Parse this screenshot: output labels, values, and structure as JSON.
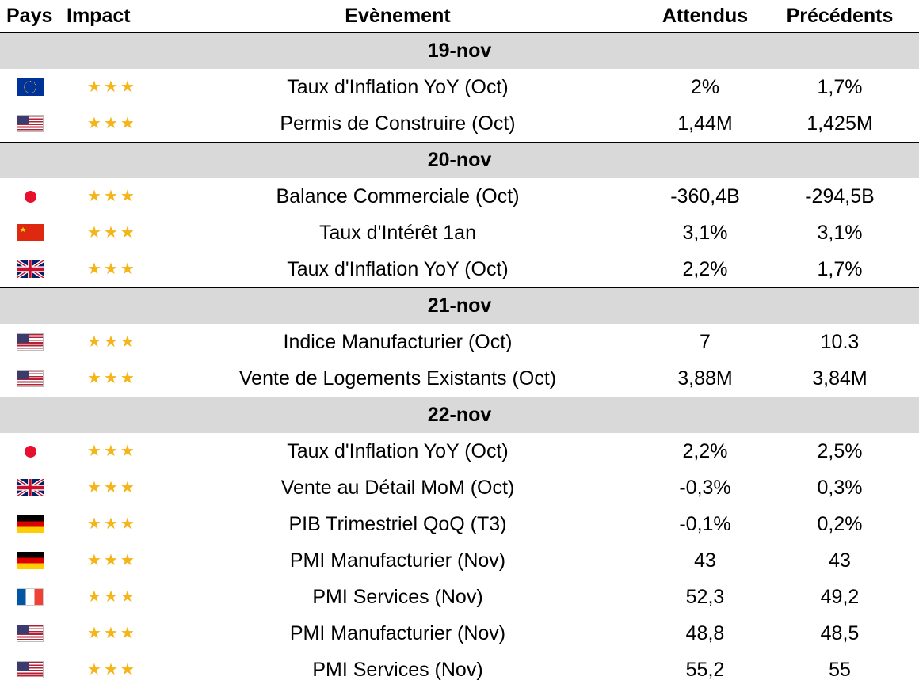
{
  "header": {
    "pays": "Pays",
    "impact": "Impact",
    "event": "Evènement",
    "attendus": "Attendus",
    "precedents": "Précédents"
  },
  "star_glyph": "★",
  "colors": {
    "date_band": "#d9d9d9",
    "star": "#f5b417"
  },
  "groups": [
    {
      "date": "19-nov",
      "rows": [
        {
          "country_icon": "eu-flag-icon",
          "event": "Taux d'Inflation YoY (Oct)",
          "attendus": "2%",
          "precedents": "1,7%"
        },
        {
          "country_icon": "us-flag-icon",
          "event": "Permis de Construire (Oct)",
          "attendus": "1,44M",
          "precedents": "1,425M"
        }
      ]
    },
    {
      "date": "20-nov",
      "rows": [
        {
          "country_icon": "jp-flag-icon",
          "event": "Balance Commerciale (Oct)",
          "attendus": "-360,4B",
          "precedents": "-294,5B"
        },
        {
          "country_icon": "cn-flag-icon",
          "event": "Taux d'Intérêt 1an",
          "attendus": "3,1%",
          "precedents": "3,1%"
        },
        {
          "country_icon": "uk-flag-icon",
          "event": "Taux d'Inflation YoY (Oct)",
          "attendus": "2,2%",
          "precedents": "1,7%"
        }
      ]
    },
    {
      "date": "21-nov",
      "rows": [
        {
          "country_icon": "us-flag-icon",
          "event": "Indice Manufacturier (Oct)",
          "attendus": "7",
          "precedents": "10.3"
        },
        {
          "country_icon": "us-flag-icon",
          "event": "Vente de Logements Existants (Oct)",
          "attendus": "3,88M",
          "precedents": "3,84M"
        }
      ]
    },
    {
      "date": "22-nov",
      "rows": [
        {
          "country_icon": "jp-flag-icon",
          "event": "Taux d'Inflation YoY (Oct)",
          "attendus": "2,2%",
          "precedents": "2,5%"
        },
        {
          "country_icon": "uk-flag-icon",
          "event": "Vente au Détail MoM (Oct)",
          "attendus": "-0,3%",
          "precedents": "0,3%"
        },
        {
          "country_icon": "de-flag-icon",
          "event": "PIB Trimestriel QoQ (T3)",
          "attendus": "-0,1%",
          "precedents": "0,2%"
        },
        {
          "country_icon": "de-flag-icon",
          "event": "PMI Manufacturier (Nov)",
          "attendus": "43",
          "precedents": "43"
        },
        {
          "country_icon": "fr-flag-icon",
          "event": "PMI Services (Nov)",
          "attendus": "52,3",
          "precedents": "49,2"
        },
        {
          "country_icon": "us-flag-icon",
          "event": "PMI Manufacturier (Nov)",
          "attendus": "48,8",
          "precedents": "48,5"
        },
        {
          "country_icon": "us-flag-icon",
          "event": "PMI Services (Nov)",
          "attendus": "55,2",
          "precedents": "55"
        }
      ]
    }
  ]
}
